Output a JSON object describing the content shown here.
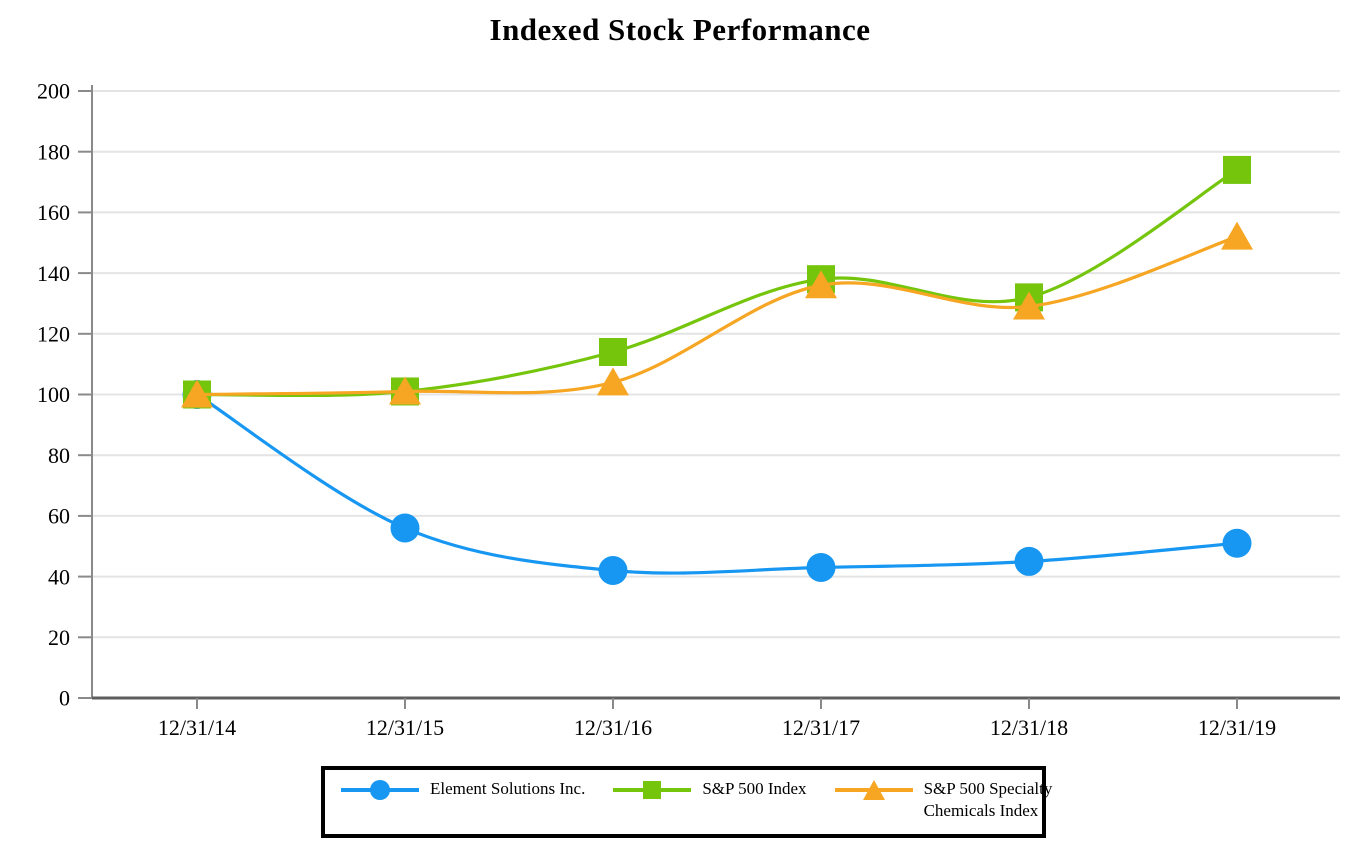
{
  "chart_data": {
    "type": "line",
    "title": "Indexed Stock Performance",
    "x": [
      "12/31/14",
      "12/31/15",
      "12/31/16",
      "12/31/17",
      "12/31/18",
      "12/31/19"
    ],
    "series": [
      {
        "name": "Element Solutions Inc.",
        "marker": "circle",
        "color": "#1797F2",
        "values": [
          100,
          56,
          42,
          43,
          45,
          51
        ]
      },
      {
        "name": "S&P 500 Index",
        "marker": "square",
        "color": "#75C50D",
        "values": [
          100,
          101,
          114,
          138,
          132,
          174
        ]
      },
      {
        "name": "S&P 500 Specialty Chemicals Index",
        "marker": "triangle",
        "color": "#F6A623",
        "values": [
          100,
          101,
          104,
          136,
          129,
          152
        ]
      }
    ],
    "legend_labels": [
      [
        "Element Solutions Inc."
      ],
      [
        "S&P 500 Index"
      ],
      [
        "S&P 500 Specialty",
        "Chemicals Index"
      ]
    ],
    "ylim": [
      0,
      200
    ],
    "ytick_step": 20,
    "xlabel": "",
    "ylabel": "",
    "grid": "horizontal",
    "legend_position": "bottom",
    "line_style": "smooth"
  },
  "styles": {
    "gridline_color": "#E4E4E4",
    "y_axis_color": "#8A8A8A",
    "x_axis_color": "#5E5E5E",
    "tick_color": "#8A8A8A",
    "text_color": "#000000",
    "legend_border_color": "#000000",
    "background": "#FFFFFF"
  }
}
